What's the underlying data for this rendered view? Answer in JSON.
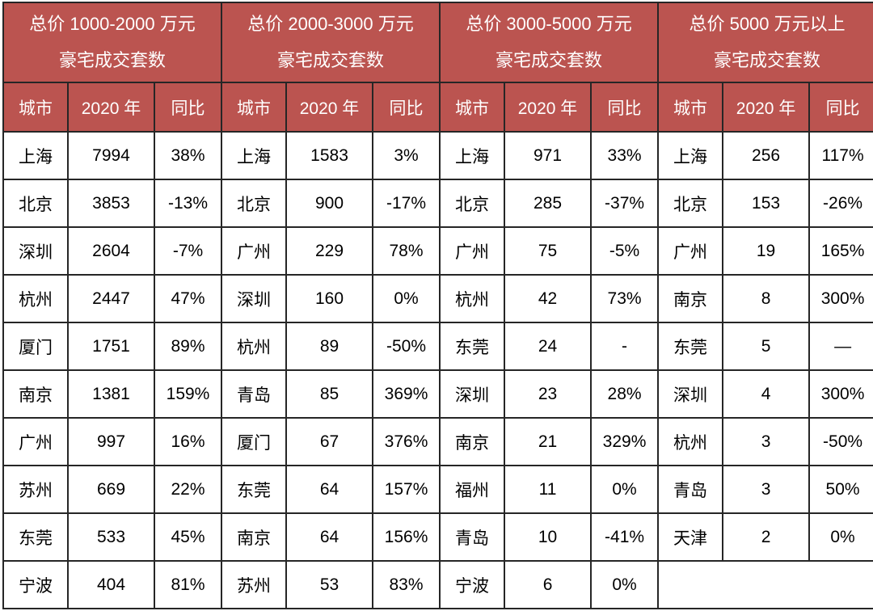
{
  "colors": {
    "header_bg": "#bb5450",
    "header_text": "#ffffff",
    "border": "#262626",
    "cell_bg": "#ffffff",
    "cell_text": "#000000"
  },
  "chart_data": [
    {
      "type": "table",
      "title_line1": "总价 1000-2000 万元",
      "title_line2": "豪宅成交套数",
      "columns": [
        "城市",
        "2020 年",
        "同比"
      ],
      "rows": [
        [
          "上海",
          7994,
          "38%"
        ],
        [
          "北京",
          3853,
          "-13%"
        ],
        [
          "深圳",
          2604,
          "-7%"
        ],
        [
          "杭州",
          2447,
          "47%"
        ],
        [
          "厦门",
          1751,
          "89%"
        ],
        [
          "南京",
          1381,
          "159%"
        ],
        [
          "广州",
          997,
          "16%"
        ],
        [
          "苏州",
          669,
          "22%"
        ],
        [
          "东莞",
          533,
          "45%"
        ],
        [
          "宁波",
          404,
          "81%"
        ]
      ]
    },
    {
      "type": "table",
      "title_line1": "总价 2000-3000 万元",
      "title_line2": "豪宅成交套数",
      "columns": [
        "城市",
        "2020 年",
        "同比"
      ],
      "rows": [
        [
          "上海",
          1583,
          "3%"
        ],
        [
          "北京",
          900,
          "-17%"
        ],
        [
          "广州",
          229,
          "78%"
        ],
        [
          "深圳",
          160,
          "0%"
        ],
        [
          "杭州",
          89,
          "-50%"
        ],
        [
          "青岛",
          85,
          "369%"
        ],
        [
          "厦门",
          67,
          "376%"
        ],
        [
          "东莞",
          64,
          "157%"
        ],
        [
          "南京",
          64,
          "156%"
        ],
        [
          "苏州",
          53,
          "83%"
        ]
      ]
    },
    {
      "type": "table",
      "title_line1": "总价 3000-5000 万元",
      "title_line2": "豪宅成交套数",
      "columns": [
        "城市",
        "2020 年",
        "同比"
      ],
      "rows": [
        [
          "上海",
          971,
          "33%"
        ],
        [
          "北京",
          285,
          "-37%"
        ],
        [
          "广州",
          75,
          "-5%"
        ],
        [
          "杭州",
          42,
          "73%"
        ],
        [
          "东莞",
          24,
          "-"
        ],
        [
          "深圳",
          23,
          "28%"
        ],
        [
          "南京",
          21,
          "329%"
        ],
        [
          "福州",
          11,
          "0%"
        ],
        [
          "青岛",
          10,
          "-41%"
        ],
        [
          "宁波",
          6,
          "0%"
        ]
      ]
    },
    {
      "type": "table",
      "title_line1": "总价 5000 万元以上",
      "title_line2": "豪宅成交套数",
      "columns": [
        "城市",
        "2020 年",
        "同比"
      ],
      "rows": [
        [
          "上海",
          256,
          "117%"
        ],
        [
          "北京",
          153,
          "-26%"
        ],
        [
          "广州",
          19,
          "165%"
        ],
        [
          "南京",
          8,
          "300%"
        ],
        [
          "东莞",
          5,
          "—"
        ],
        [
          "深圳",
          4,
          "300%"
        ],
        [
          "杭州",
          3,
          "-50%"
        ],
        [
          "青岛",
          3,
          "50%"
        ],
        [
          "天津",
          2,
          "0%"
        ],
        null
      ]
    }
  ]
}
